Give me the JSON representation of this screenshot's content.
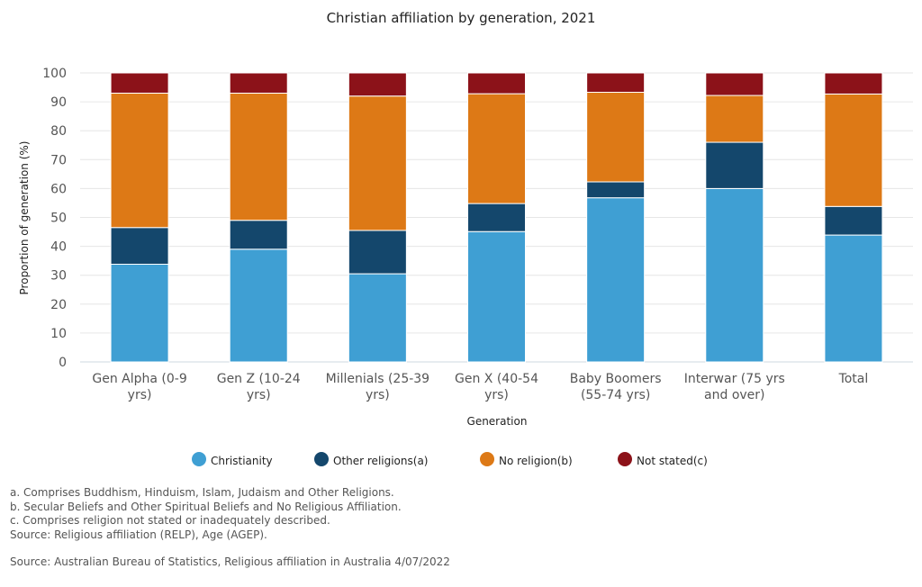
{
  "chart_data": {
    "type": "bar",
    "stacked": true,
    "title": "Christian affiliation by generation, 2021",
    "xlabel": "Generation",
    "ylabel": "Proportion of generation (%)",
    "ylim": [
      0,
      100
    ],
    "yticks": [
      0,
      10,
      20,
      30,
      40,
      50,
      60,
      70,
      80,
      90,
      100
    ],
    "grid": true,
    "legend_position": "bottom",
    "categories": [
      [
        "Gen Alpha (0-9",
        "yrs)"
      ],
      [
        "Gen Z (10-24",
        "yrs)"
      ],
      [
        "Millenials (25-39",
        "yrs)"
      ],
      [
        "Gen X (40-54",
        "yrs)"
      ],
      [
        "Baby Boomers",
        "(55-74 yrs)"
      ],
      [
        "Interwar (75 yrs",
        "and over)"
      ],
      [
        "Total"
      ]
    ],
    "series": [
      {
        "name": "Christianity",
        "color": "#3f9fd3",
        "values": [
          33.8,
          39.0,
          30.5,
          45.1,
          56.8,
          60.0,
          43.9
        ]
      },
      {
        "name": "Other religions(a)",
        "color": "#14476c",
        "values": [
          12.7,
          10.0,
          15.0,
          9.7,
          5.5,
          16.0,
          9.9
        ]
      },
      {
        "name": "No religion(b)",
        "color": "#dd7916",
        "values": [
          46.5,
          44.0,
          46.5,
          38.0,
          31.0,
          16.2,
          38.9
        ]
      },
      {
        "name": "Not stated(c)",
        "color": "#8c1219",
        "values": [
          7.0,
          7.0,
          8.0,
          7.2,
          6.7,
          7.8,
          7.3
        ]
      }
    ]
  },
  "notes": [
    "a. Comprises Buddhism, Hinduism, Islam, Judaism and Other Religions.",
    "b. Secular Beliefs and Other Spiritual Beliefs and No Religious Affiliation.",
    "c. Comprises religion not stated or inadequately described.",
    "Source: Religious affiliation (RELP), Age (AGEP)."
  ],
  "source": "Source: Australian Bureau of Statistics, Religious affiliation in Australia 4/07/2022"
}
